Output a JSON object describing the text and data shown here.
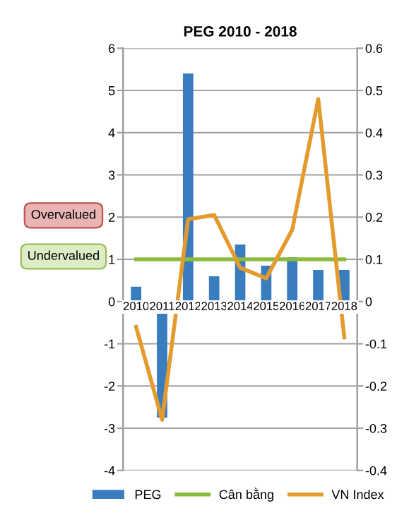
{
  "chart_data": {
    "type": "bar",
    "title": "PEG 2010 - 2018",
    "categories": [
      "2010",
      "2011",
      "2012",
      "2013",
      "2014",
      "2015",
      "2016",
      "2017",
      "2018"
    ],
    "series": [
      {
        "name": "PEG",
        "color": "#3a7dbf",
        "values": [
          0.35,
          -2.75,
          5.4,
          0.6,
          1.35,
          0.85,
          1.05,
          0.75,
          0.75
        ]
      },
      {
        "name": "Cân bằng",
        "type": "line",
        "color": "#8cbb3c",
        "values": [
          1,
          1,
          1,
          1,
          1,
          1,
          1,
          1,
          1
        ]
      },
      {
        "name": "VN Index",
        "type": "line",
        "axis": "y2",
        "color": "#e39b2e",
        "values": [
          -0.06,
          -0.28,
          0.195,
          0.205,
          0.08,
          0.055,
          0.17,
          0.48,
          -0.085
        ]
      }
    ],
    "ylim": [
      -4,
      6
    ],
    "yticks": [
      -4,
      -3,
      -2,
      -1,
      0,
      1,
      2,
      3,
      4,
      5,
      6
    ],
    "y2lim": [
      -0.4,
      0.6
    ],
    "y2ticks": [
      -0.4,
      -0.3,
      -0.2,
      -0.1,
      0,
      0.1,
      0.2,
      0.3,
      0.4,
      0.5,
      0.6
    ],
    "grid": "y",
    "legend": "bottom",
    "annotations": [
      "Overvalued",
      "Undervalued"
    ]
  }
}
